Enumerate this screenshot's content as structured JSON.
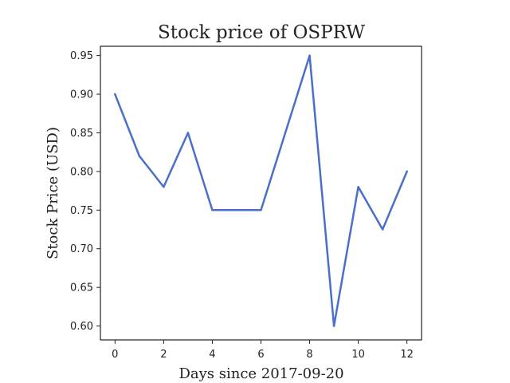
{
  "chart_data": {
    "type": "line",
    "title": "Stock price of OSPRW",
    "xlabel": "Days since 2017-09-20",
    "ylabel": "Stock Price (USD)",
    "x": [
      0,
      1,
      2,
      3,
      4,
      5,
      6,
      7,
      8,
      9,
      10,
      11,
      12
    ],
    "series": [
      {
        "values": [
          0.9,
          0.82,
          0.78,
          0.85,
          0.75,
          0.75,
          0.75,
          0.85,
          0.95,
          0.6,
          0.78,
          0.725,
          0.8
        ],
        "color": "#4a6fca"
      }
    ],
    "xlim": [
      -0.6,
      12.6
    ],
    "ylim": [
      0.582,
      0.962
    ],
    "xticks": [
      0,
      2,
      4,
      6,
      8,
      10,
      12
    ],
    "xtick_labels": [
      "0",
      "2",
      "4",
      "6",
      "8",
      "10",
      "12"
    ],
    "yticks": [
      0.6,
      0.65,
      0.7,
      0.75,
      0.8,
      0.85,
      0.9,
      0.95
    ],
    "ytick_labels": [
      "0.60",
      "0.65",
      "0.70",
      "0.75",
      "0.80",
      "0.85",
      "0.90",
      "0.95"
    ],
    "grid": false,
    "legend": false
  }
}
